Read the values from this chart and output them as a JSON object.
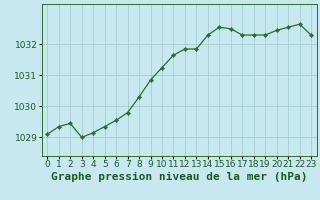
{
  "x": [
    0,
    1,
    2,
    3,
    4,
    5,
    6,
    7,
    8,
    9,
    10,
    11,
    12,
    13,
    14,
    15,
    16,
    17,
    18,
    19,
    20,
    21,
    22,
    23
  ],
  "y": [
    1029.1,
    1029.35,
    1029.45,
    1029.0,
    1029.15,
    1029.35,
    1029.55,
    1029.8,
    1030.3,
    1030.85,
    1031.25,
    1031.65,
    1031.85,
    1031.85,
    1032.3,
    1032.55,
    1032.5,
    1032.3,
    1032.3,
    1032.3,
    1032.45,
    1032.55,
    1032.65,
    1032.3
  ],
  "line_color": "#2a6e2a",
  "marker": "D",
  "marker_size": 2.2,
  "bg_color": "#c8e8f0",
  "grid_color": "#a0c8c8",
  "xlabel": "Graphe pression niveau de la mer (hPa)",
  "xlabel_color": "#1a5c1a",
  "xlabel_fontsize": 8,
  "tick_color": "#1a5c1a",
  "tick_fontsize": 6.5,
  "ylim": [
    1028.4,
    1033.3
  ],
  "yticks": [
    1029,
    1030,
    1031,
    1032
  ],
  "xlim": [
    -0.5,
    23.5
  ],
  "xticks": [
    0,
    1,
    2,
    3,
    4,
    5,
    6,
    7,
    8,
    9,
    10,
    11,
    12,
    13,
    14,
    15,
    16,
    17,
    18,
    19,
    20,
    21,
    22,
    23
  ],
  "spine_color": "#2a6e2a",
  "linewidth": 0.9
}
